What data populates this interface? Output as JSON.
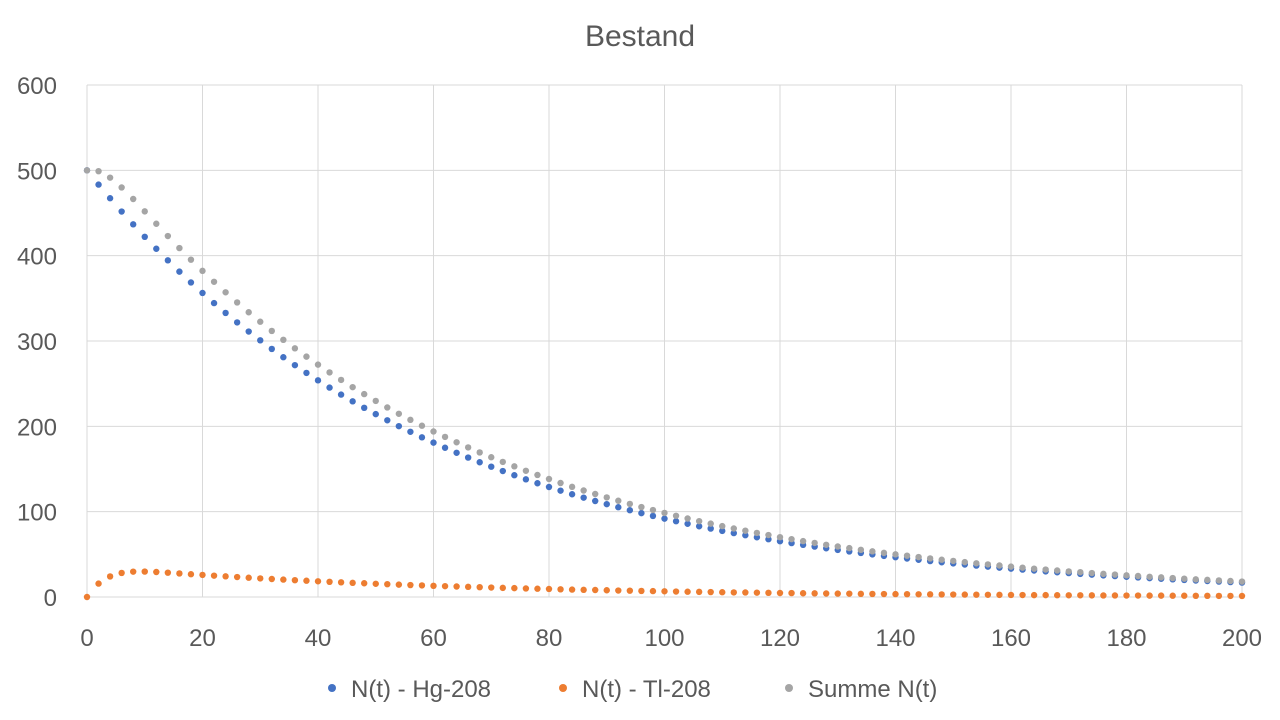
{
  "chart_data": {
    "type": "scatter",
    "title": "Bestand",
    "xlabel": "",
    "ylabel": "",
    "xlim": [
      0,
      200
    ],
    "ylim": [
      0,
      600
    ],
    "x_ticks": [
      0,
      20,
      40,
      60,
      80,
      100,
      120,
      140,
      160,
      180,
      200
    ],
    "y_ticks": [
      0,
      100,
      200,
      300,
      400,
      500,
      600
    ],
    "grid": true,
    "legend_position": "bottom",
    "x_step": 2,
    "series": [
      {
        "name": "N(t) - Hg-208",
        "color": "#4472c4",
        "values": [
          500,
          483.3,
          467.3,
          451.7,
          436.7,
          422.1,
          408.1,
          394.5,
          381.3,
          368.6,
          356.3,
          344.4,
          332.9,
          321.8,
          311.1,
          300.8,
          290.7,
          281.0,
          271.7,
          262.6,
          253.9,
          245.4,
          237.2,
          229.3,
          221.7,
          214.3,
          207.1,
          200.2,
          193.6,
          187.1,
          180.9,
          174.9,
          169.0,
          163.4,
          157.9,
          152.7,
          147.6,
          142.7,
          137.9,
          133.3,
          128.9,
          124.6,
          120.4,
          116.4,
          112.5,
          108.8,
          105.2,
          101.7,
          98.3,
          95.0,
          91.8,
          88.8,
          85.8,
          82.9,
          80.2,
          77.5,
          74.9,
          72.4,
          70.0,
          67.7,
          65.4,
          63.2,
          61.1,
          59.1,
          57.1,
          55.2,
          53.4,
          51.6,
          49.9,
          48.2,
          46.6,
          45.1,
          43.6,
          42.1,
          40.7,
          39.4,
          38.1,
          36.8,
          35.6,
          34.4,
          33.2,
          32.1,
          31.0,
          30.0,
          29.0,
          28.0,
          27.1,
          26.2,
          25.3,
          24.5,
          23.7,
          22.9,
          22.1,
          21.4,
          20.7,
          20.0,
          19.3,
          18.7,
          18.1,
          17.5,
          16.9
        ]
      },
      {
        "name": "N(t) - Tl-208",
        "color": "#ed7d31",
        "values": [
          0,
          15.7,
          24.1,
          28.2,
          29.7,
          29.8,
          29.3,
          28.5,
          27.6,
          26.7,
          25.9,
          25.0,
          24.2,
          23.4,
          22.6,
          21.8,
          21.1,
          20.4,
          19.7,
          19.1,
          18.4,
          17.8,
          17.2,
          16.6,
          16.1,
          15.5,
          15.0,
          14.5,
          14.0,
          13.6,
          13.1,
          12.7,
          12.3,
          11.9,
          11.5,
          11.1,
          10.7,
          10.4,
          10.0,
          9.7,
          9.4,
          9.0,
          8.7,
          8.4,
          8.2,
          7.9,
          7.6,
          7.4,
          7.1,
          6.9,
          6.7,
          6.4,
          6.2,
          6.0,
          5.8,
          5.6,
          5.4,
          5.3,
          5.1,
          4.9,
          4.7,
          4.6,
          4.4,
          4.3,
          4.1,
          4.0,
          3.9,
          3.7,
          3.6,
          3.5,
          3.4,
          3.3,
          3.2,
          3.1,
          3.0,
          2.9,
          2.8,
          2.7,
          2.6,
          2.5,
          2.4,
          2.3,
          2.2,
          2.2,
          2.1,
          2.0,
          2.0,
          1.9,
          1.8,
          1.8,
          1.7,
          1.7,
          1.6,
          1.6,
          1.5,
          1.5,
          1.4,
          1.4,
          1.3,
          1.3,
          1.2
        ]
      },
      {
        "name": "Summe N(t)",
        "color": "#a5a5a5",
        "values": [
          500,
          499.0,
          491.4,
          479.9,
          466.4,
          451.9,
          437.4,
          423.0,
          408.9,
          395.3,
          382.2,
          369.4,
          357.1,
          345.2,
          333.7,
          322.6,
          311.8,
          301.4,
          291.4,
          281.7,
          272.3,
          263.2,
          254.4,
          245.9,
          237.8,
          229.8,
          222.1,
          214.7,
          207.6,
          200.7,
          194.0,
          187.6,
          181.3,
          175.3,
          169.4,
          163.8,
          158.3,
          153.1,
          147.9,
          143.0,
          138.3,
          133.6,
          129.1,
          124.8,
          120.7,
          116.7,
          112.8,
          109.1,
          105.4,
          101.9,
          98.5,
          95.2,
          92.0,
          88.9,
          86.0,
          83.1,
          80.3,
          77.7,
          75.1,
          72.6,
          70.1,
          67.8,
          65.5,
          63.4,
          61.2,
          59.2,
          57.3,
          55.3,
          53.5,
          51.7,
          50.0,
          48.4,
          46.8,
          45.2,
          43.7,
          42.3,
          40.9,
          39.5,
          38.2,
          36.9,
          35.6,
          34.4,
          33.2,
          32.2,
          31.1,
          30.0,
          29.1,
          28.1,
          27.1,
          26.3,
          25.4,
          24.6,
          23.7,
          23.0,
          22.2,
          21.5,
          20.7,
          20.1,
          19.4,
          18.8,
          18.1
        ]
      }
    ]
  }
}
